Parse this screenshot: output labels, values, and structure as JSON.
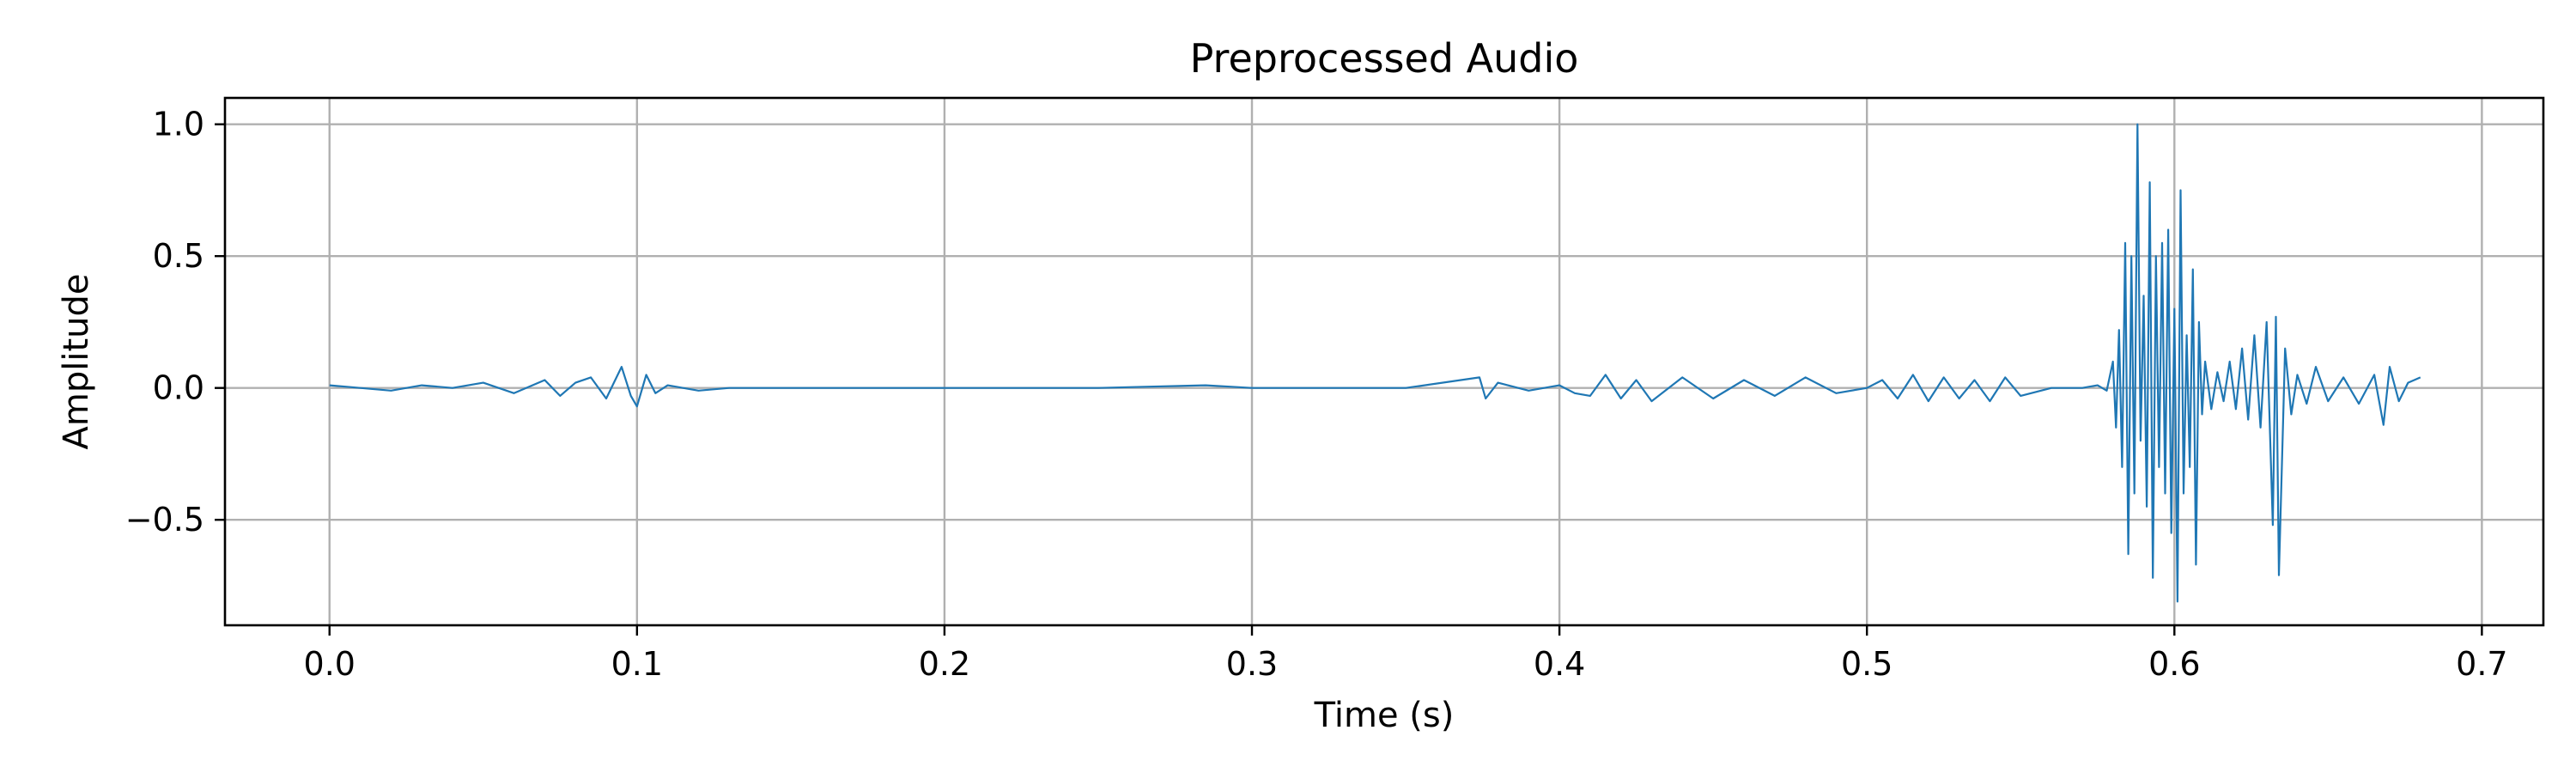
{
  "chart_data": {
    "type": "line",
    "title": "Preprocessed Audio",
    "xlabel": "Time (s)",
    "ylabel": "Amplitude",
    "xlim": [
      -0.034,
      0.72
    ],
    "ylim": [
      -0.9,
      1.1
    ],
    "xticks": [
      0.0,
      0.1,
      0.2,
      0.3,
      0.4,
      0.5,
      0.6,
      0.7
    ],
    "xtick_labels": [
      "0.0",
      "0.1",
      "0.2",
      "0.3",
      "0.4",
      "0.5",
      "0.6",
      "0.7"
    ],
    "yticks": [
      1.0,
      0.5,
      0.0,
      -0.5
    ],
    "ytick_labels": [
      "1.0",
      "0.5",
      "0.0",
      "−0.5"
    ],
    "grid": true,
    "line_color": "#1f77b4",
    "series": [
      {
        "x": [
          0.0,
          0.01,
          0.02,
          0.03,
          0.04,
          0.05,
          0.06,
          0.07,
          0.075,
          0.08,
          0.085,
          0.09,
          0.095,
          0.098,
          0.1,
          0.103,
          0.106,
          0.11,
          0.12,
          0.13,
          0.15,
          0.2,
          0.25,
          0.285,
          0.3,
          0.35,
          0.374,
          0.376,
          0.38,
          0.39,
          0.4,
          0.405,
          0.41,
          0.415,
          0.42,
          0.425,
          0.43,
          0.44,
          0.45,
          0.46,
          0.47,
          0.48,
          0.49,
          0.5,
          0.505,
          0.51,
          0.515,
          0.52,
          0.525,
          0.53,
          0.535,
          0.54,
          0.545,
          0.55,
          0.56,
          0.57,
          0.575,
          0.578,
          0.58,
          0.581,
          0.582,
          0.583,
          0.584,
          0.585,
          0.586,
          0.587,
          0.588,
          0.589,
          0.59,
          0.591,
          0.592,
          0.593,
          0.594,
          0.595,
          0.596,
          0.597,
          0.598,
          0.599,
          0.6,
          0.601,
          0.602,
          0.603,
          0.604,
          0.605,
          0.606,
          0.607,
          0.608,
          0.609,
          0.61,
          0.612,
          0.614,
          0.616,
          0.618,
          0.62,
          0.622,
          0.624,
          0.626,
          0.628,
          0.63,
          0.632,
          0.633,
          0.634,
          0.636,
          0.638,
          0.64,
          0.643,
          0.646,
          0.65,
          0.655,
          0.66,
          0.665,
          0.668,
          0.67,
          0.673,
          0.676,
          0.68
        ],
        "y": [
          0.01,
          0.0,
          -0.01,
          0.01,
          0.0,
          0.02,
          -0.02,
          0.03,
          -0.03,
          0.02,
          0.04,
          -0.04,
          0.08,
          -0.03,
          -0.07,
          0.05,
          -0.02,
          0.01,
          -0.01,
          0.0,
          0.0,
          0.0,
          0.0,
          0.01,
          0.0,
          0.0,
          0.04,
          -0.04,
          0.02,
          -0.01,
          0.01,
          -0.02,
          -0.03,
          0.05,
          -0.04,
          0.03,
          -0.05,
          0.04,
          -0.04,
          0.03,
          -0.03,
          0.04,
          -0.02,
          0.0,
          0.03,
          -0.04,
          0.05,
          -0.05,
          0.04,
          -0.04,
          0.03,
          -0.05,
          0.04,
          -0.03,
          0.0,
          0.0,
          0.01,
          -0.01,
          0.1,
          -0.15,
          0.22,
          -0.3,
          0.55,
          -0.63,
          0.5,
          -0.4,
          1.0,
          -0.2,
          0.35,
          -0.45,
          0.78,
          -0.72,
          0.5,
          -0.3,
          0.55,
          -0.4,
          0.6,
          -0.55,
          0.3,
          -0.81,
          0.75,
          -0.4,
          0.2,
          -0.3,
          0.45,
          -0.67,
          0.25,
          -0.1,
          0.1,
          -0.08,
          0.06,
          -0.05,
          0.1,
          -0.08,
          0.15,
          -0.12,
          0.2,
          -0.15,
          0.25,
          -0.52,
          0.27,
          -0.71,
          0.15,
          -0.1,
          0.05,
          -0.06,
          0.08,
          -0.05,
          0.04,
          -0.06,
          0.05,
          -0.14,
          0.08,
          -0.05,
          0.02,
          0.04
        ]
      }
    ]
  }
}
